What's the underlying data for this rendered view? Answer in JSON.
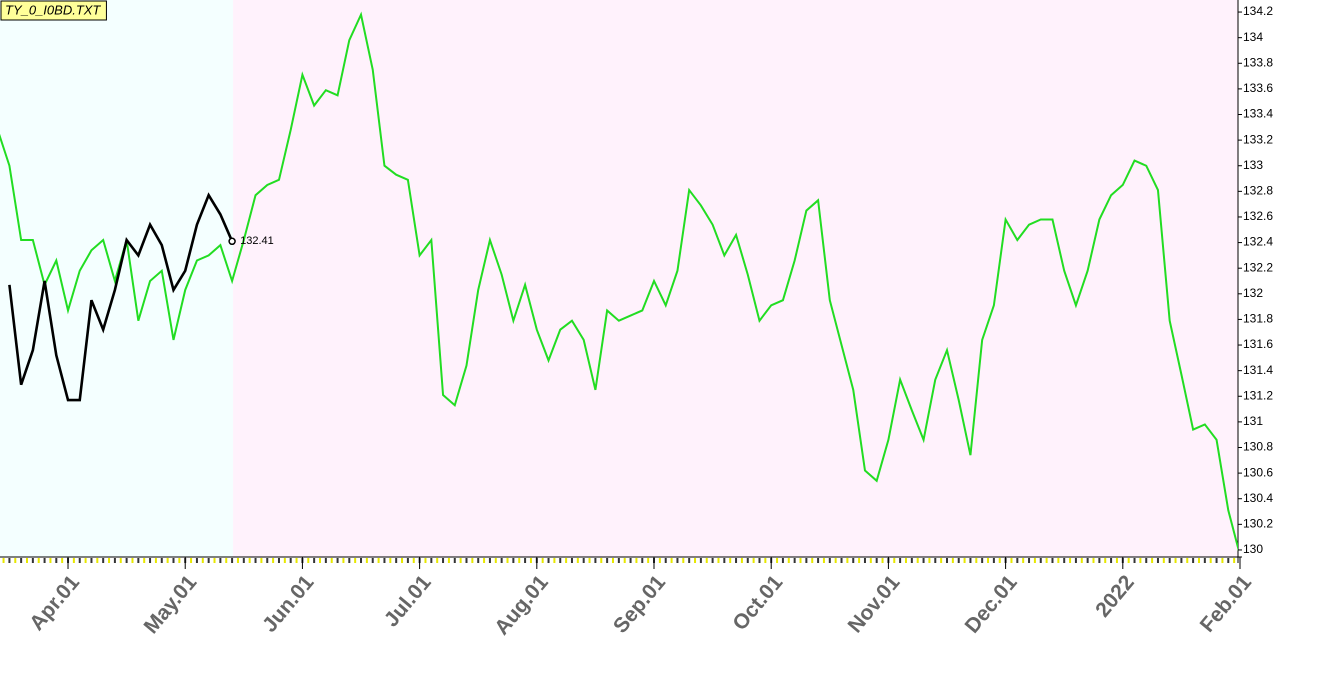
{
  "chart_data": {
    "type": "line",
    "title": "TY_0_I0BD.TXT",
    "categories": [
      null,
      null,
      null,
      null,
      null,
      null,
      "Apr.01",
      null,
      null,
      null,
      null,
      null,
      null,
      null,
      null,
      null,
      "May.01",
      null,
      null,
      null,
      null,
      null,
      null,
      null,
      null,
      null,
      "Jun.01",
      null,
      null,
      null,
      null,
      null,
      null,
      null,
      null,
      null,
      "Jul.01",
      null,
      null,
      null,
      null,
      null,
      null,
      null,
      null,
      null,
      "Aug.01",
      null,
      null,
      null,
      null,
      null,
      null,
      null,
      null,
      null,
      "Sep.01",
      null,
      null,
      null,
      null,
      null,
      null,
      null,
      null,
      null,
      "Oct.01",
      null,
      null,
      null,
      null,
      null,
      null,
      null,
      null,
      null,
      "Nov.01",
      null,
      null,
      null,
      null,
      null,
      null,
      null,
      null,
      null,
      "Dec.01",
      null,
      null,
      null,
      null,
      null,
      null,
      null,
      null,
      null,
      "2022",
      null,
      null,
      null,
      null,
      null,
      null,
      null,
      null,
      null,
      "Feb.01"
    ],
    "series": [
      {
        "color": "#22dd22",
        "values": [
          133.28,
          133.0,
          132.42,
          132.42,
          132.07,
          132.26,
          131.87,
          132.18,
          132.34,
          132.42,
          132.1,
          132.42,
          131.79,
          132.1,
          132.18,
          131.64,
          132.03,
          132.26,
          132.3,
          132.38,
          132.1,
          132.42,
          132.77,
          132.85,
          132.89,
          133.28,
          133.71,
          133.47,
          133.59,
          133.55,
          133.98,
          134.18,
          133.75,
          133.0,
          132.93,
          132.89,
          132.3,
          132.42,
          131.21,
          131.13,
          131.44,
          132.03,
          132.42,
          132.15,
          131.79,
          132.07,
          131.72,
          131.48,
          131.72,
          131.79,
          131.64,
          131.25,
          131.87,
          131.79,
          131.83,
          131.87,
          132.1,
          131.91,
          132.18,
          132.81,
          132.69,
          132.54,
          132.3,
          132.46,
          132.15,
          131.79,
          131.91,
          131.95,
          132.26,
          132.65,
          132.73,
          131.95,
          131.6,
          131.25,
          130.62,
          130.54,
          130.86,
          131.33,
          131.09,
          130.86,
          131.33,
          131.56,
          131.17,
          130.74,
          131.64,
          131.91,
          132.58,
          132.42,
          132.54,
          132.58,
          132.58,
          132.18,
          131.91,
          132.18,
          132.58,
          132.77,
          132.85,
          133.04,
          133.0,
          132.81,
          131.79,
          131.37,
          130.94,
          130.98,
          130.86,
          130.31,
          129.96
        ]
      },
      {
        "color": "#000000",
        "values": [
          null,
          132.07,
          131.29,
          131.56,
          132.1,
          131.52,
          131.17,
          131.17,
          131.95,
          131.72,
          132.03,
          132.42,
          132.3,
          132.54,
          132.38,
          132.03,
          132.18,
          132.54,
          132.77,
          132.62,
          132.41,
          null,
          null,
          null,
          null,
          null,
          null,
          null,
          null,
          null,
          null,
          null,
          null,
          null,
          null,
          null,
          null,
          null,
          null,
          null,
          null,
          null,
          null,
          null,
          null,
          null,
          null,
          null,
          null,
          null,
          null,
          null,
          null,
          null,
          null,
          null,
          null,
          null,
          null,
          null,
          null,
          null,
          null,
          null,
          null,
          null,
          null,
          null,
          null,
          null,
          null,
          null,
          null,
          null,
          null,
          null,
          null,
          null,
          null,
          null,
          null,
          null,
          null,
          null,
          null,
          null,
          null,
          null,
          null,
          null,
          null,
          null,
          null,
          null,
          null,
          null,
          null,
          null,
          null,
          null,
          null,
          null,
          null,
          null,
          null,
          null,
          null
        ]
      }
    ],
    "ylim": [
      129.945,
      134.255
    ],
    "yticks": [
      130,
      130.2,
      130.4,
      130.6,
      130.8,
      131,
      131.2,
      131.4,
      131.6,
      131.8,
      132,
      132.2,
      132.4,
      132.6,
      132.8,
      133,
      133.2,
      133.4,
      133.6,
      133.8,
      134,
      134.2
    ],
    "background_colors": [
      "#f4ffff",
      "#fff2fc"
    ],
    "title_color": "#ffff99",
    "year_label_color": "#8b0000"
  }
}
